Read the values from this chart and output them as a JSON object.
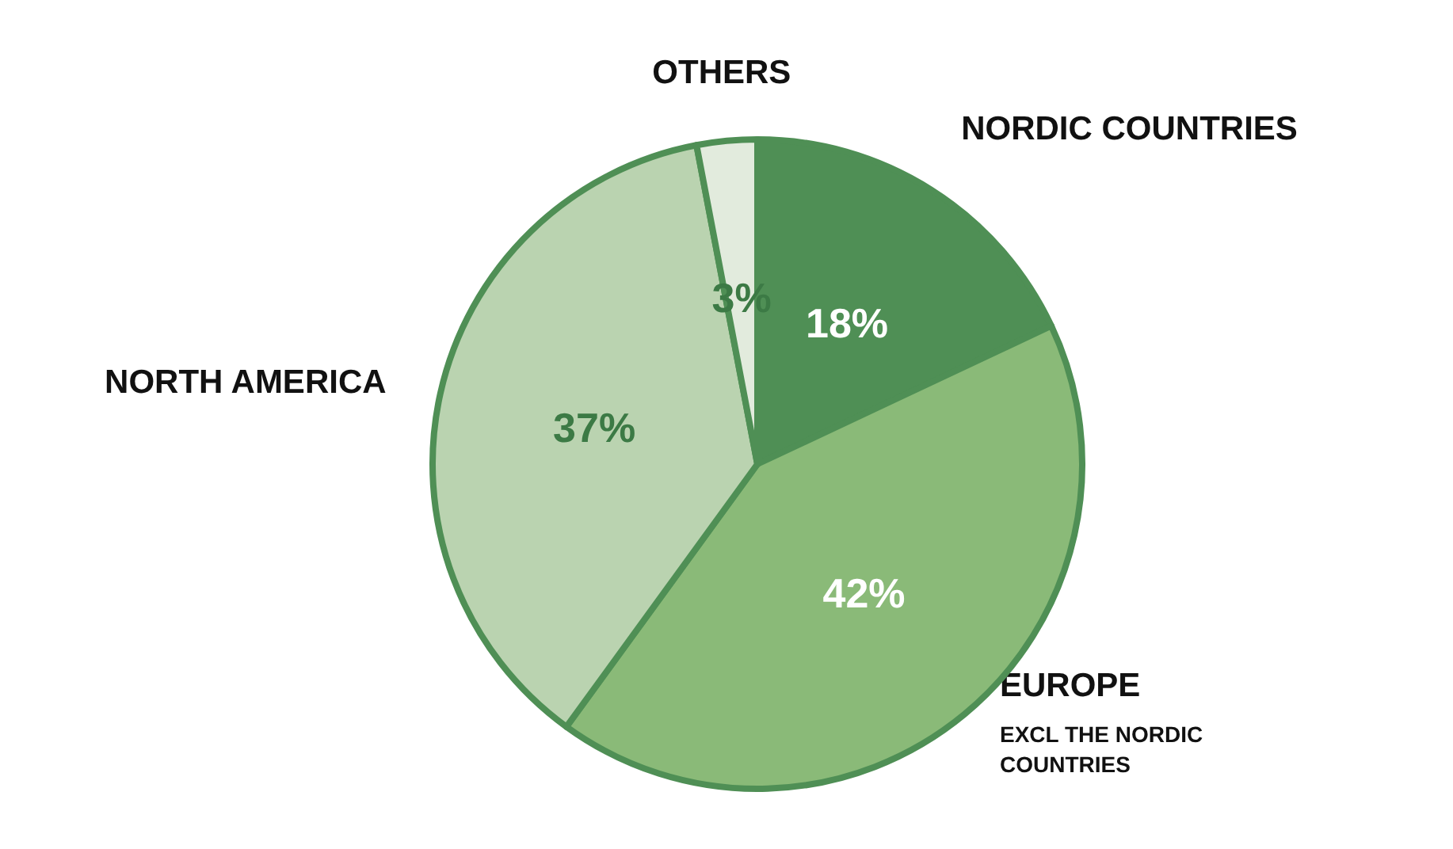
{
  "chart_data": {
    "type": "pie",
    "categories": [
      "NORDIC COUNTRIES",
      "EUROPE",
      "NORTH AMERICA",
      "OTHERS"
    ],
    "values": [
      18,
      42,
      37,
      3
    ],
    "value_labels": [
      "18%",
      "42%",
      "37%",
      "3%"
    ],
    "colors": [
      "#4f8f55",
      "#8aba78",
      "#bad3b0",
      "#e2ebdd"
    ],
    "annotations": [
      "EXCL THE NORDIC COUNTRIES"
    ],
    "legend": false
  }
}
